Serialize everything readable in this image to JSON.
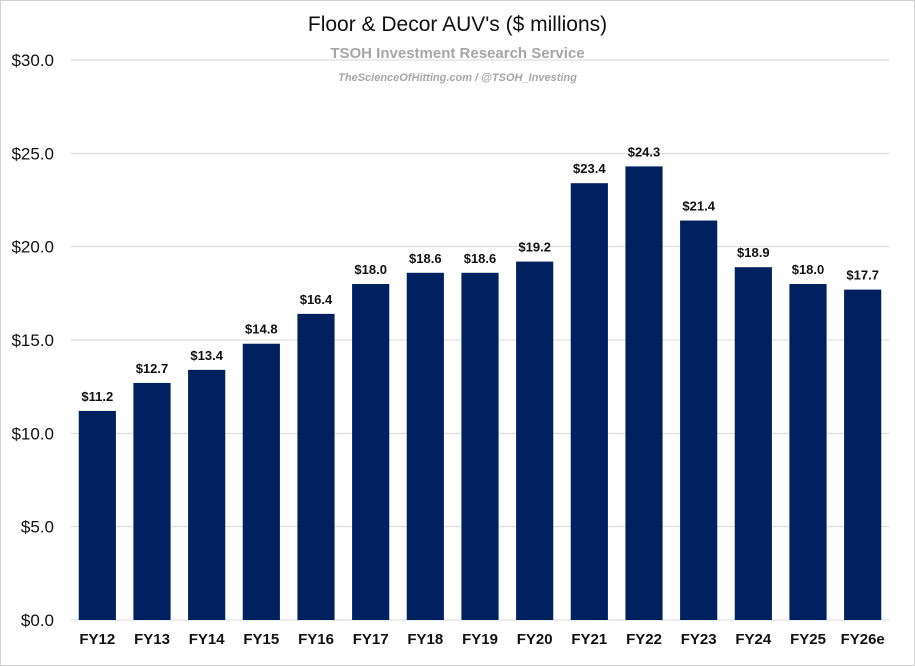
{
  "chart_data": {
    "type": "bar",
    "title": "Floor & Decor AUV's ($ millions)",
    "subtitle": "TSOH Investment Research Service",
    "credit": "TheScienceOfHitting.com / @TSOH_Investing",
    "xlabel": "",
    "ylabel": "",
    "ylim": [
      0,
      30
    ],
    "yticks": [
      "$0.0",
      "$5.0",
      "$10.0",
      "$15.0",
      "$20.0",
      "$25.0",
      "$30.0"
    ],
    "grid": true,
    "bar_color": "#002060",
    "categories": [
      "FY12",
      "FY13",
      "FY14",
      "FY15",
      "FY16",
      "FY17",
      "FY18",
      "FY19",
      "FY20",
      "FY21",
      "FY22",
      "FY23",
      "FY24",
      "FY25",
      "FY26e"
    ],
    "values": [
      11.2,
      12.7,
      13.4,
      14.8,
      16.4,
      18.0,
      18.6,
      18.6,
      19.2,
      23.4,
      24.3,
      21.4,
      18.9,
      18.0,
      17.7
    ],
    "data_labels": [
      "$11.2",
      "$12.7",
      "$13.4",
      "$14.8",
      "$16.4",
      "$18.0",
      "$18.6",
      "$18.6",
      "$19.2",
      "$23.4",
      "$24.3",
      "$21.4",
      "$18.9",
      "$18.0",
      "$17.7"
    ]
  }
}
